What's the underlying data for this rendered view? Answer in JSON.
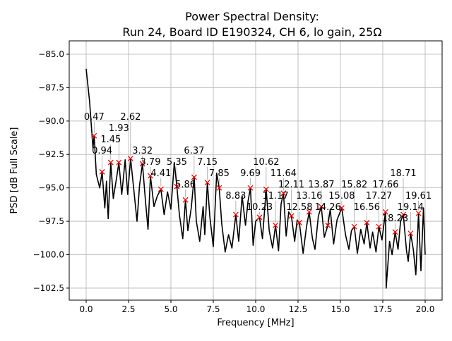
{
  "chart_data": {
    "type": "line",
    "title": "Power Spectral Density:",
    "subtitle": "Run 24, Board ID E190324, CH 6, lo gain, 25Ω",
    "xlabel": "Frequency [MHz]",
    "ylabel": "PSD [dB Full Scale]",
    "xlim": [
      -1.0,
      21.0
    ],
    "ylim": [
      -103.4,
      -84.0
    ],
    "xticks": [
      0.0,
      2.5,
      5.0,
      7.5,
      10.0,
      12.5,
      15.0,
      17.5,
      20.0
    ],
    "xtick_labels": [
      "0.0",
      "2.5",
      "5.0",
      "7.5",
      "10.0",
      "12.5",
      "15.0",
      "17.5",
      "20.0"
    ],
    "yticks": [
      -102.5,
      -100.0,
      -97.5,
      -95.0,
      -92.5,
      -90.0,
      -87.5,
      -85.0
    ],
    "ytick_labels": [
      "−102.5",
      "−100.0",
      "−97.5",
      "−95.0",
      "−92.5",
      "−90.0",
      "−87.5",
      "−85.0"
    ],
    "grid": true,
    "line_color": "#000000",
    "marker_color": "#ff0000",
    "series": [
      {
        "x": [
          0.0,
          0.2,
          0.4,
          0.47,
          0.6,
          0.8,
          0.94,
          1.1,
          1.2,
          1.3,
          1.45,
          1.6,
          1.8,
          1.93,
          2.1,
          2.3,
          2.45,
          2.62,
          2.8,
          3.0,
          3.15,
          3.32,
          3.5,
          3.65,
          3.79,
          4.0,
          4.2,
          4.41,
          4.6,
          4.8,
          5.0,
          5.2,
          5.35,
          5.5,
          5.7,
          5.86,
          6.0,
          6.2,
          6.37,
          6.5,
          6.7,
          6.9,
          7.0,
          7.15,
          7.3,
          7.5,
          7.7,
          7.85,
          8.0,
          8.2,
          8.4,
          8.6,
          8.83,
          9.0,
          9.2,
          9.4,
          9.55,
          9.69,
          9.85,
          10.0,
          10.23,
          10.4,
          10.62,
          10.8,
          11.0,
          11.17,
          11.35,
          11.5,
          11.64,
          11.8,
          11.95,
          12.11,
          12.3,
          12.45,
          12.58,
          12.8,
          13.0,
          13.16,
          13.35,
          13.5,
          13.7,
          13.87,
          14.05,
          14.26,
          14.4,
          14.6,
          14.8,
          15.08,
          15.3,
          15.5,
          15.65,
          15.82,
          16.0,
          16.2,
          16.4,
          16.56,
          16.75,
          16.9,
          17.1,
          17.27,
          17.45,
          17.66,
          17.7,
          17.9,
          18.05,
          18.23,
          18.4,
          18.55,
          18.71,
          18.9,
          19.0,
          19.14,
          19.3,
          19.45,
          19.61,
          19.75,
          19.9,
          20.0
        ],
        "y": [
          -86.1,
          -88.5,
          -92.0,
          -91.1,
          -94.0,
          -95.0,
          -93.8,
          -96.5,
          -94.5,
          -97.3,
          -93.1,
          -95.8,
          -94.2,
          -93.1,
          -95.5,
          -92.9,
          -95.5,
          -92.8,
          -95.0,
          -97.5,
          -94.8,
          -93.2,
          -96.0,
          -98.1,
          -94.1,
          -96.4,
          -95.6,
          -95.1,
          -97.0,
          -95.3,
          -96.6,
          -93.1,
          -94.9,
          -97.0,
          -98.8,
          -95.9,
          -98.2,
          -96.5,
          -94.2,
          -97.5,
          -99.0,
          -96.4,
          -98.5,
          -94.6,
          -97.2,
          -99.4,
          -93.9,
          -95.0,
          -97.7,
          -99.8,
          -98.5,
          -99.5,
          -97.0,
          -99.0,
          -95.6,
          -97.8,
          -96.0,
          -95.0,
          -99.3,
          -97.5,
          -97.2,
          -98.8,
          -95.1,
          -98.2,
          -99.5,
          -97.8,
          -99.7,
          -96.2,
          -95.4,
          -98.6,
          -96.8,
          -97.1,
          -99.0,
          -97.4,
          -97.6,
          -99.9,
          -97.9,
          -96.8,
          -98.8,
          -99.6,
          -97.1,
          -96.4,
          -98.7,
          -97.8,
          -96.6,
          -99.2,
          -97.4,
          -96.5,
          -98.5,
          -99.6,
          -98.2,
          -97.9,
          -99.9,
          -98.1,
          -99.2,
          -97.6,
          -99.5,
          -98.3,
          -99.8,
          -97.9,
          -98.9,
          -96.8,
          -102.5,
          -99.0,
          -100.0,
          -98.3,
          -99.6,
          -97.5,
          -97.0,
          -99.7,
          -100.5,
          -98.4,
          -99.6,
          -101.5,
          -96.9,
          -101.2,
          -96.5,
          -100.0
        ]
      }
    ],
    "peaks": [
      {
        "x": 0.47,
        "y": -91.1,
        "label": "0.47"
      },
      {
        "x": 0.94,
        "y": -93.8,
        "label": "0.94"
      },
      {
        "x": 1.45,
        "y": -93.1,
        "label": "1.45"
      },
      {
        "x": 1.93,
        "y": -93.1,
        "label": "1.93"
      },
      {
        "x": 2.62,
        "y": -92.8,
        "label": "2.62"
      },
      {
        "x": 3.32,
        "y": -93.2,
        "label": "3.32"
      },
      {
        "x": 3.79,
        "y": -94.1,
        "label": "3.79"
      },
      {
        "x": 4.41,
        "y": -95.1,
        "label": "4.41"
      },
      {
        "x": 5.35,
        "y": -94.9,
        "label": "5.35"
      },
      {
        "x": 5.86,
        "y": -95.9,
        "label": "5.86"
      },
      {
        "x": 6.37,
        "y": -94.2,
        "label": "6.37"
      },
      {
        "x": 7.15,
        "y": -94.6,
        "label": "7.15"
      },
      {
        "x": 7.85,
        "y": -95.0,
        "label": "7.85"
      },
      {
        "x": 8.83,
        "y": -97.0,
        "label": "8.83"
      },
      {
        "x": 9.69,
        "y": -95.0,
        "label": "9.69"
      },
      {
        "x": 10.23,
        "y": -97.2,
        "label": "10.23"
      },
      {
        "x": 10.62,
        "y": -95.1,
        "label": "10.62"
      },
      {
        "x": 11.17,
        "y": -97.8,
        "label": "11.17"
      },
      {
        "x": 11.64,
        "y": -95.4,
        "label": "11.64"
      },
      {
        "x": 12.11,
        "y": -97.1,
        "label": "12.11"
      },
      {
        "x": 12.58,
        "y": -97.6,
        "label": "12.58"
      },
      {
        "x": 13.16,
        "y": -96.8,
        "label": "13.16"
      },
      {
        "x": 13.87,
        "y": -96.4,
        "label": "13.87"
      },
      {
        "x": 14.26,
        "y": -97.8,
        "label": "14.26"
      },
      {
        "x": 15.08,
        "y": -96.5,
        "label": "15.08"
      },
      {
        "x": 15.82,
        "y": -97.9,
        "label": "15.82"
      },
      {
        "x": 16.56,
        "y": -97.6,
        "label": "16.56"
      },
      {
        "x": 17.27,
        "y": -97.9,
        "label": "17.27"
      },
      {
        "x": 17.66,
        "y": -96.8,
        "label": "17.66"
      },
      {
        "x": 18.23,
        "y": -98.3,
        "label": "18.23"
      },
      {
        "x": 18.71,
        "y": -97.0,
        "label": "18.71"
      },
      {
        "x": 19.14,
        "y": -98.4,
        "label": "19.14"
      },
      {
        "x": 19.61,
        "y": -96.9,
        "label": "19.61"
      }
    ]
  }
}
